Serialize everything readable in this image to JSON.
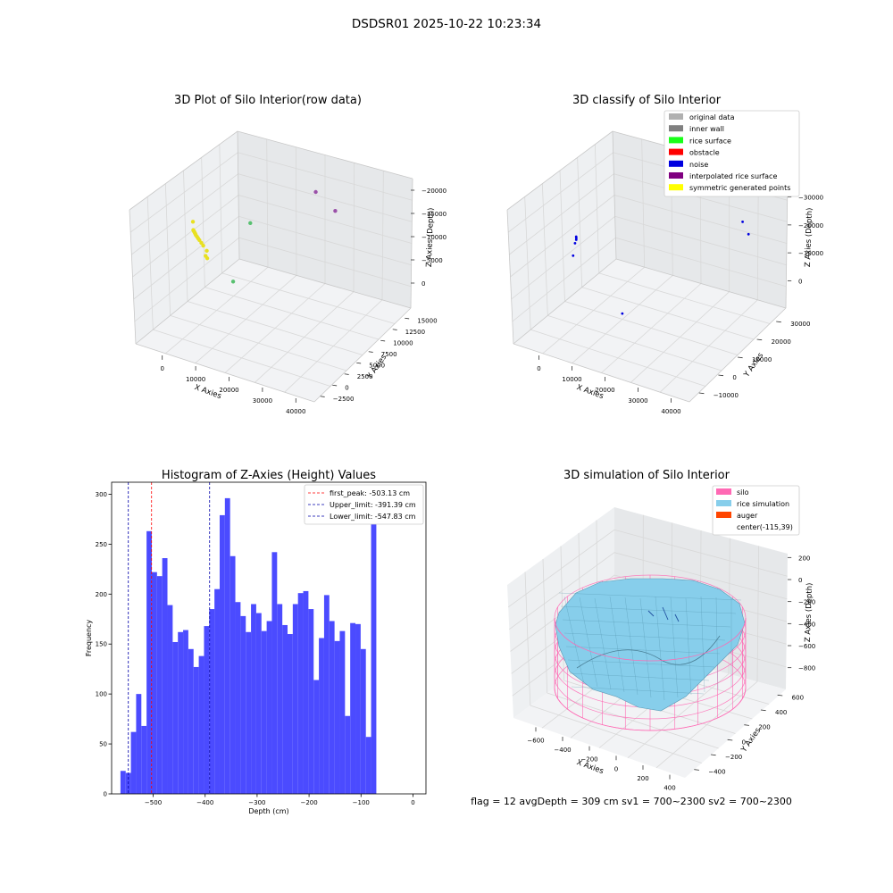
{
  "figure_title": "DSDSR01 2025-10-22 10:23:34",
  "status_line": "flag = 12   avgDepth = 309 cm  sv1 = 700~2300  sv2 = 700~2300",
  "chart_data": [
    {
      "type": "scatter",
      "projection": "3d",
      "title": "3D Plot of Silo Interior(row data)",
      "xlabel": "X Axies",
      "ylabel": "Y Axies",
      "zlabel": "Z Axies (Depth)",
      "xticks": [
        "0",
        "10000",
        "20000",
        "30000",
        "40000"
      ],
      "yticks": [
        "−2500",
        "0",
        "2500",
        "5000",
        "7500",
        "10000",
        "12500",
        "15000"
      ],
      "zticks": [
        "0",
        "−5000",
        "−10000",
        "−15000",
        "−20000"
      ],
      "series": [
        {
          "color": "#e8e020",
          "points": [
            [
              1800,
              9800,
              -4800
            ],
            [
              2300,
              10300,
              -4300
            ],
            [
              2700,
              10600,
              -4100
            ],
            [
              3100,
              10900,
              -3900
            ],
            [
              3400,
              11100,
              -3800
            ],
            [
              3700,
              11300,
              -3700
            ],
            [
              4000,
              11500,
              -3600
            ],
            [
              4200,
              11600,
              -3500
            ],
            [
              4400,
              11700,
              -3450
            ],
            [
              4600,
              11800,
              -3400
            ],
            [
              4800,
              11900,
              -3350
            ],
            [
              5000,
              12000,
              -3300
            ],
            [
              7600,
              12600,
              -3000
            ],
            [
              200,
              9400,
              -5400
            ],
            [
              300,
              9600,
              -5100
            ]
          ]
        },
        {
          "color": "#58c070",
          "points": [
            [
              9000,
              8400,
              -12000
            ],
            [
              29000,
              10800,
              -9500
            ]
          ]
        },
        {
          "color": "#9a50a8",
          "points": [
            [
              36000,
              2800,
              -5500
            ],
            [
              37000,
              5200,
              -3700
            ]
          ]
        }
      ]
    },
    {
      "type": "scatter",
      "projection": "3d",
      "title": "3D classify of Silo Interior",
      "xlabel": "X Axies",
      "ylabel": "Y Axies",
      "zlabel": "Z Axies (Depth)",
      "xticks": [
        "0",
        "10000",
        "20000",
        "30000",
        "40000"
      ],
      "yticks": [
        "−10000",
        "0",
        "10000",
        "20000",
        "30000"
      ],
      "zticks": [
        "0",
        "−10000",
        "−20000",
        "−30000"
      ],
      "legend_position": "upper-right",
      "legend": [
        {
          "label": "original data",
          "color": "#b0b0b0"
        },
        {
          "label": "inner wall",
          "color": "#808080"
        },
        {
          "label": "rice surface",
          "color": "#19ff19"
        },
        {
          "label": "obstacle",
          "color": "#ff0000"
        },
        {
          "label": "noise",
          "color": "#0000e0"
        },
        {
          "label": "interpolated rice surface",
          "color": "#800080"
        },
        {
          "label": "symmetric generated points",
          "color": "#ffff00"
        }
      ],
      "series": [
        {
          "color": "#0000e0",
          "points": [
            [
              3000,
              21000,
              -3000
            ],
            [
              3400,
              21200,
              -2800
            ],
            [
              3700,
              21400,
              -2600
            ],
            [
              2000,
              20800,
              -3400
            ],
            [
              -800,
              19800,
              -5200
            ],
            [
              5000,
              9000,
              -22000
            ],
            [
              40000,
              -6000,
              -9000
            ],
            [
              38500,
              -8500,
              -11000
            ]
          ]
        }
      ]
    },
    {
      "type": "histogram",
      "title": "Histogram of Z-Axies (Height) Values",
      "xlabel": "Depth (cm)",
      "ylabel": "Frequency",
      "xlim": [
        -580,
        25
      ],
      "ylim": [
        0,
        312
      ],
      "xticks": [
        -500,
        -400,
        -300,
        -200,
        -100,
        0
      ],
      "yticks": [
        0,
        50,
        100,
        150,
        200,
        250,
        300
      ],
      "bar_color": "#4b4bff",
      "bin_start": -563,
      "bin_width": 10.05,
      "counts": [
        23,
        21,
        62,
        100,
        68,
        263,
        222,
        218,
        236,
        189,
        152,
        162,
        164,
        145,
        127,
        138,
        168,
        185,
        205,
        279,
        296,
        238,
        192,
        178,
        162,
        190,
        181,
        163,
        173,
        242,
        190,
        169,
        160,
        190,
        201,
        203,
        185,
        114,
        156,
        199,
        173,
        153,
        163,
        78,
        171,
        170,
        145,
        57,
        283
      ],
      "vlines": [
        {
          "label": "first_peak: -503.13 cm",
          "x": -503.13,
          "color": "#ff0000"
        },
        {
          "label": "Upper_limit: -391.39 cm",
          "x": -391.39,
          "color": "#0000aa"
        },
        {
          "label": "Lower_limit: -547.83 cm",
          "x": -547.83,
          "color": "#0000aa"
        }
      ],
      "legend_position": "upper-right"
    },
    {
      "type": "surface",
      "projection": "3d",
      "title": "3D simulation of Silo Interior",
      "xlabel": "X Axies",
      "ylabel": "Y Axies",
      "zlabel": "Z Axies (Depth)",
      "xticks": [
        "−600",
        "−400",
        "−200",
        "0",
        "200",
        "400"
      ],
      "yticks": [
        "−400",
        "−200",
        "0",
        "200",
        "400",
        "600"
      ],
      "zticks": [
        "200",
        "0",
        "−200",
        "−400",
        "−600",
        "−800"
      ],
      "legend_position": "upper-right",
      "legend": [
        {
          "label": "silo",
          "color": "#ff69b4"
        },
        {
          "label": "rice simulation",
          "color": "#87ceeb"
        },
        {
          "label": "auger",
          "color": "#ff4500"
        },
        {
          "label": "center(-115,39)",
          "color": ""
        }
      ],
      "silo_radius": 500,
      "silo_z_range": [
        -800,
        0
      ],
      "surface_depth": -300
    }
  ]
}
